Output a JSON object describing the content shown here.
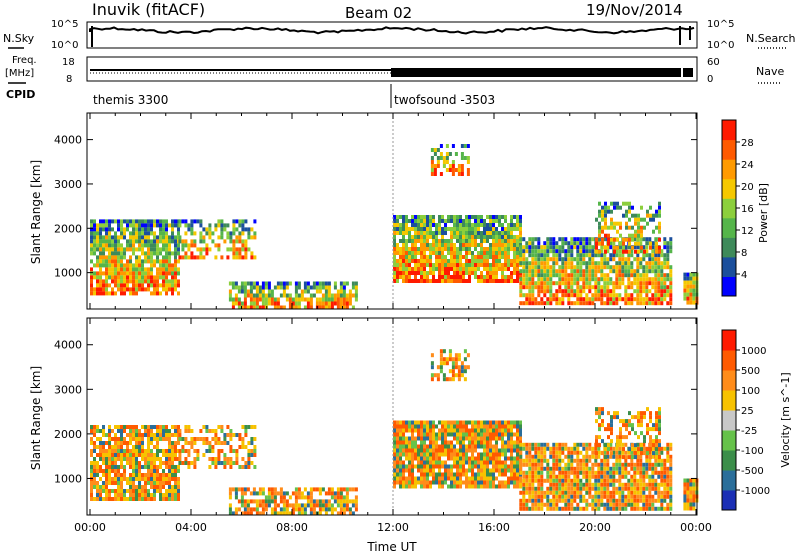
{
  "header": {
    "station": "Inuvik (fitACF)",
    "beam": "Beam 02",
    "date": "19/Nov/2014"
  },
  "noise_panel": {
    "left_label": "N.Sky",
    "left_ticks": [
      "10^5",
      "10^0"
    ],
    "right_ticks": [
      "10^5",
      "10^0"
    ],
    "right_label": "N.Search"
  },
  "freq_panel": {
    "left_label_1": "Freq.",
    "left_label_2": "[MHz]",
    "left_ticks": [
      "18",
      "8"
    ],
    "right_ticks": [
      "60",
      "0"
    ],
    "right_label": "Nave"
  },
  "cpid_panel": {
    "label": "CPID",
    "segments": [
      "themis 3300",
      "twofsound -3503"
    ]
  },
  "chart_data": [
    {
      "type": "heatmap",
      "quantity": "Power",
      "ylabel": "Slant Range [km]",
      "xlabel": "",
      "ylim": [
        180,
        4600
      ],
      "yticks": [
        "4000",
        "3000",
        "2000",
        "1000"
      ],
      "colorbar_label": "Power [dB]",
      "colorbar_ticks": [
        "28",
        "24",
        "20",
        "16",
        "12",
        "8",
        "4"
      ],
      "colorscale": [
        "#0000ff",
        "#1b4f9c",
        "#3e8a5a",
        "#55b54a",
        "#8ccf3c",
        "#f5c800",
        "#ff9a00",
        "#ff5a00",
        "#ff1a00"
      ],
      "colorbar_range": [
        0,
        30
      ]
    },
    {
      "type": "heatmap",
      "quantity": "Velocity",
      "ylabel": "Slant Range [km]",
      "xlabel": "Time UT",
      "x_ticks": [
        "00:00",
        "04:00",
        "08:00",
        "12:00",
        "16:00",
        "20:00",
        "00:00"
      ],
      "ylim": [
        180,
        4600
      ],
      "yticks": [
        "4000",
        "3000",
        "2000",
        "1000"
      ],
      "colorbar_label": "Velocity [m s^-1]",
      "colorbar_ticks": [
        "1000",
        "500",
        "100",
        "25",
        "-25",
        "-100",
        "-500",
        "-1000"
      ],
      "colorscale": [
        "#1b2fb5",
        "#2a6e9a",
        "#3b8e4a",
        "#66c24a",
        "#c8c8c8",
        "#f7c200",
        "#ff8c1a",
        "#ff5a00",
        "#ff1a00"
      ]
    }
  ]
}
